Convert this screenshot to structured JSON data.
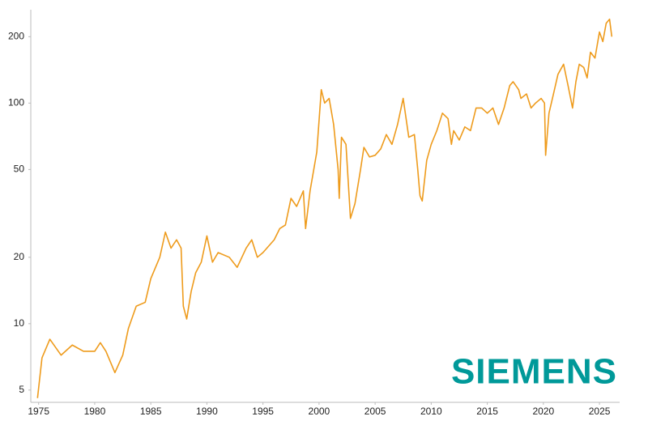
{
  "chart_data": {
    "type": "line",
    "logo": "SIEMENS",
    "x": [
      1974.9,
      1975.3,
      1976,
      1977,
      1978,
      1979,
      1980,
      1980.5,
      1981,
      1981.8,
      1982.5,
      1983,
      1983.7,
      1984.5,
      1985,
      1985.8,
      1986.3,
      1986.8,
      1987.3,
      1987.7,
      1987.9,
      1988.2,
      1988.6,
      1989,
      1989.5,
      1990,
      1990.5,
      1991,
      1992,
      1992.7,
      1993.5,
      1994,
      1994.5,
      1995,
      1996,
      1996.5,
      1997,
      1997.5,
      1998,
      1998.6,
      1998.8,
      1999.2,
      1999.8,
      2000.2,
      2000.5,
      2000.9,
      2001.3,
      2001.7,
      2001.8,
      2002,
      2002.4,
      2002.8,
      2003.2,
      2003.7,
      2004,
      2004.5,
      2005,
      2005.5,
      2006,
      2006.5,
      2007,
      2007.5,
      2008,
      2008.5,
      2008.8,
      2009,
      2009.2,
      2009.6,
      2010,
      2010.5,
      2011,
      2011.5,
      2011.8,
      2012,
      2012.5,
      2013,
      2013.5,
      2014,
      2014.5,
      2015,
      2015.5,
      2016,
      2016.5,
      2017,
      2017.3,
      2017.8,
      2018,
      2018.5,
      2018.9,
      2019.3,
      2019.8,
      2020.1,
      2020.2,
      2020.5,
      2020.9,
      2021.3,
      2021.8,
      2022.2,
      2022.6,
      2022.9,
      2023.2,
      2023.6,
      2023.9,
      2024.2,
      2024.6,
      2025,
      2025.3,
      2025.6,
      2025.9,
      2026.1
    ],
    "values": [
      4.6,
      7,
      8.5,
      7.2,
      8,
      7.5,
      7.5,
      8.2,
      7.5,
      6,
      7.2,
      9.5,
      12,
      12.5,
      16,
      20,
      26,
      22,
      24,
      22,
      12,
      10.5,
      14,
      17,
      19,
      25,
      19,
      21,
      20,
      18,
      22,
      24,
      20,
      21,
      24,
      27,
      28,
      37,
      34,
      40,
      27,
      40,
      60,
      115,
      100,
      105,
      80,
      50,
      37,
      70,
      65,
      30,
      35,
      50,
      63,
      57,
      58,
      62,
      72,
      65,
      80,
      105,
      70,
      72,
      50,
      38,
      36,
      55,
      65,
      75,
      90,
      85,
      65,
      75,
      68,
      78,
      75,
      95,
      95,
      90,
      95,
      80,
      95,
      120,
      125,
      115,
      105,
      110,
      95,
      100,
      105,
      100,
      58,
      90,
      110,
      135,
      150,
      120,
      95,
      125,
      150,
      145,
      130,
      170,
      160,
      210,
      190,
      230,
      240,
      200
    ],
    "color": "#ee9b1c",
    "log_scale": true,
    "xlim": [
      1974.3,
      2026.8
    ],
    "xticks": [
      1975,
      1980,
      1985,
      1990,
      1995,
      2000,
      2005,
      2010,
      2015,
      2020,
      2025
    ],
    "ylim": [
      4.4,
      265
    ],
    "yticks": [
      5,
      10,
      20,
      50,
      100,
      200
    ]
  }
}
